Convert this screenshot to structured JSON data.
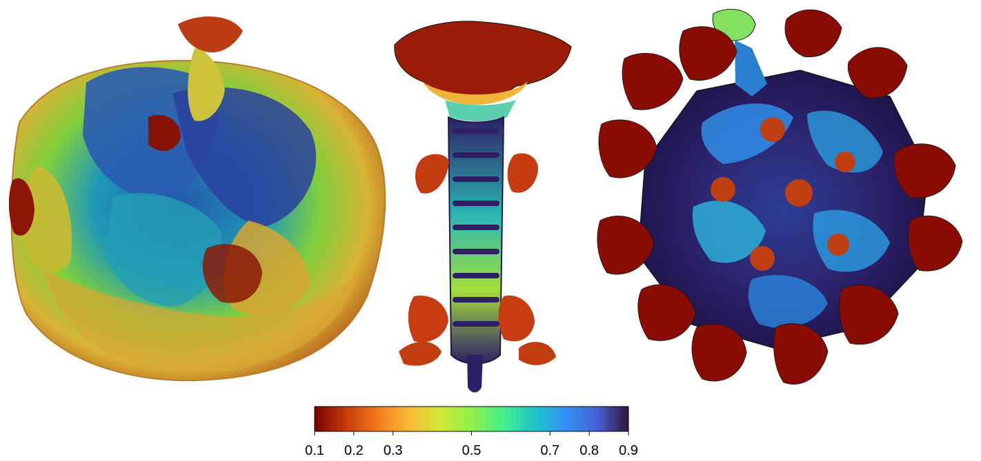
{
  "panels": [
    {
      "name": "left-structure",
      "description_colors": [
        "#2f6ab8",
        "#d6c338",
        "#8a1205"
      ]
    },
    {
      "name": "center-tail-structure",
      "description_colors": [
        "#8a1205",
        "#22b3a6",
        "#2f1f65"
      ]
    },
    {
      "name": "right-capsid-structure",
      "description_colors": [
        "#2a2268",
        "#27b9d9",
        "#8a0d04"
      ]
    }
  ],
  "colorbar": {
    "min": 0.1,
    "max": 0.9,
    "ticks": [
      "0.1",
      "0.2",
      "0.3",
      "0.5",
      "0.7",
      "0.8",
      "0.9"
    ],
    "tick_values": [
      0.1,
      0.2,
      0.3,
      0.5,
      0.7,
      0.8,
      0.9
    ],
    "colormap": [
      "#7a0403",
      "#c63a09",
      "#f37a1b",
      "#fbb938",
      "#d2e935",
      "#8ff04a",
      "#44f08a",
      "#1fc5c8",
      "#3290f5",
      "#4663d6",
      "#30123b"
    ]
  }
}
